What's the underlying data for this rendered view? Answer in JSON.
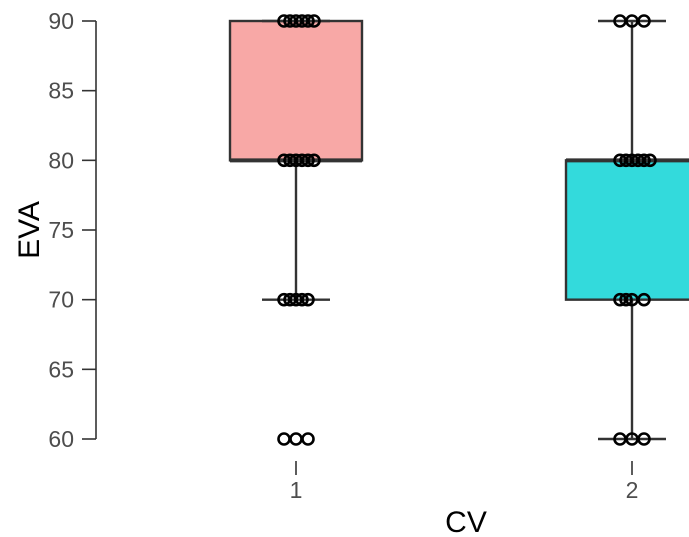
{
  "chart_data": {
    "type": "box",
    "xlabel": "CV",
    "ylabel": "EVA",
    "ylim": [
      60,
      90
    ],
    "yticks": [
      60,
      65,
      70,
      75,
      80,
      85,
      90
    ],
    "categories": [
      "1",
      "2"
    ],
    "groups": [
      {
        "category": "1",
        "color": "#F8A8A6",
        "q1": 80,
        "median": 80,
        "q3": 90,
        "whisker_low": 70,
        "whisker_high": 90,
        "outliers": [
          60
        ],
        "points": [
          90,
          90,
          90,
          90,
          90,
          90,
          80,
          80,
          80,
          80,
          80,
          80,
          70,
          70,
          70,
          70,
          70,
          60,
          60,
          60
        ]
      },
      {
        "category": "2",
        "color": "#33DADC",
        "q1": 70,
        "median": 80,
        "q3": 80,
        "whisker_low": 60,
        "whisker_high": 90,
        "outliers": [],
        "points": [
          90,
          90,
          90,
          80,
          80,
          80,
          80,
          80,
          80,
          70,
          70,
          70,
          70,
          60,
          60,
          60
        ]
      }
    ]
  }
}
